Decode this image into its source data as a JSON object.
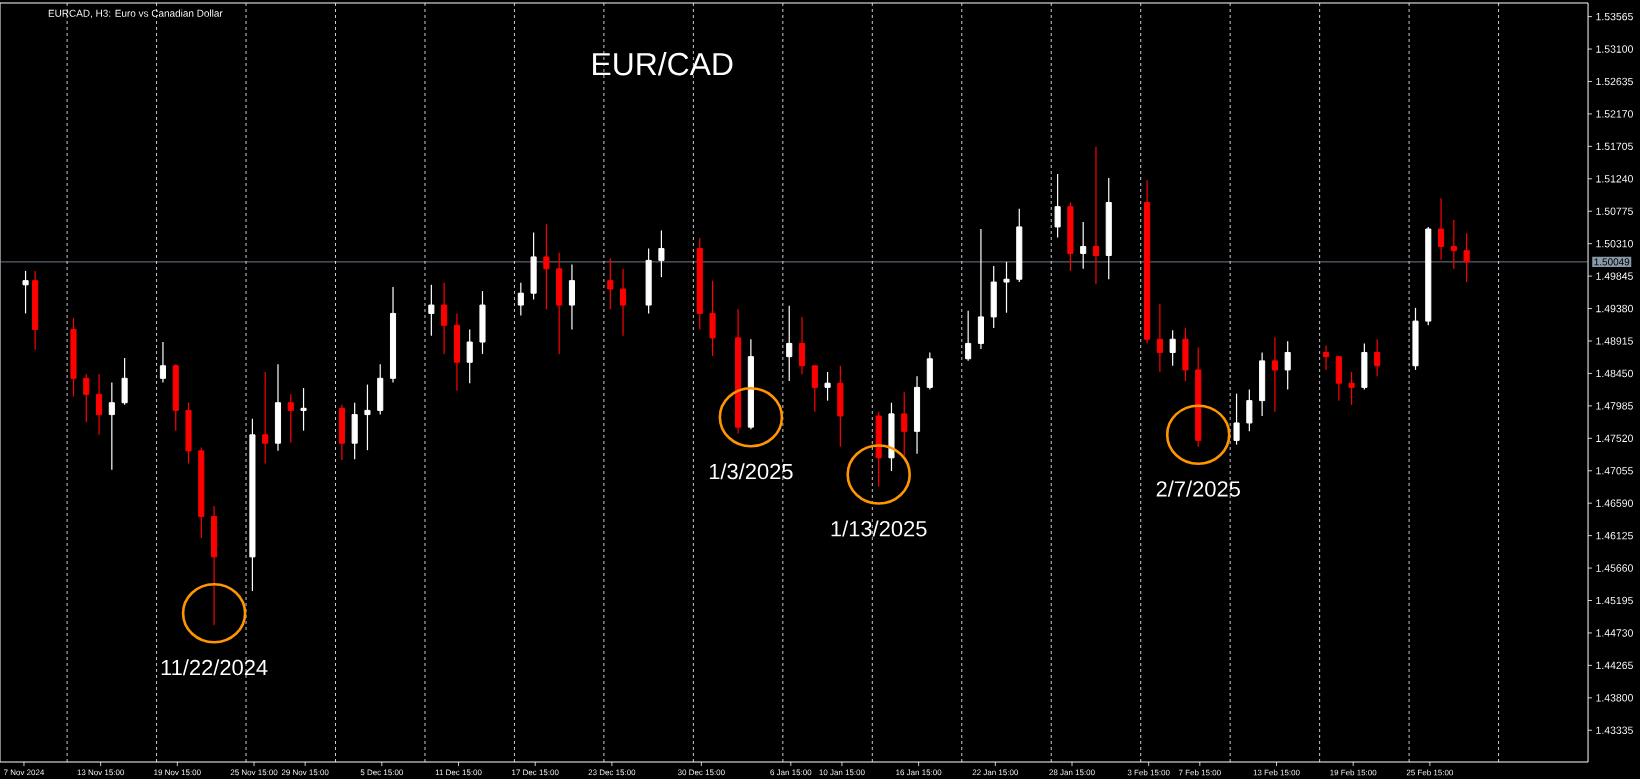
{
  "chart_data": {
    "type": "candlestick",
    "title": "EUR/CAD",
    "subtitle": "EURCAD, H3:  Euro vs Canadian Dollar",
    "x": [
      "2024-11-07T18:00",
      "2024-11-08T12:00",
      "2024-11-11T12:00",
      "2024-11-12T12:00",
      "2024-11-13T12:00",
      "2024-11-14T12:00",
      "2024-11-15T12:00",
      "2024-11-18T12:00",
      "2024-11-19T12:00",
      "2024-11-20T12:00",
      "2024-11-21T12:00",
      "2024-11-22T12:00",
      "2024-11-25T12:00",
      "2024-11-26T12:00",
      "2024-11-27T12:00",
      "2024-11-28T12:00",
      "2024-11-29T12:00",
      "2024-12-02T12:00",
      "2024-12-03T12:00",
      "2024-12-04T12:00",
      "2024-12-05T12:00",
      "2024-12-06T12:00",
      "2024-12-09T12:00",
      "2024-12-10T12:00",
      "2024-12-11T12:00",
      "2024-12-12T12:00",
      "2024-12-13T12:00",
      "2024-12-16T12:00",
      "2024-12-17T12:00",
      "2024-12-18T12:00",
      "2024-12-19T12:00",
      "2024-12-20T12:00",
      "2024-12-23T12:00",
      "2024-12-24T12:00",
      "2024-12-26T12:00",
      "2024-12-27T12:00",
      "2024-12-30T12:00",
      "2024-12-31T12:00",
      "2025-01-02T12:00",
      "2025-01-03T12:00",
      "2025-01-06T12:00",
      "2025-01-07T12:00",
      "2025-01-08T12:00",
      "2025-01-09T12:00",
      "2025-01-10T12:00",
      "2025-01-13T12:00",
      "2025-01-14T12:00",
      "2025-01-15T12:00",
      "2025-01-16T12:00",
      "2025-01-17T12:00",
      "2025-01-20T12:00",
      "2025-01-21T12:00",
      "2025-01-22T12:00",
      "2025-01-23T12:00",
      "2025-01-24T12:00",
      "2025-01-27T12:00",
      "2025-01-28T12:00",
      "2025-01-29T12:00",
      "2025-01-30T12:00",
      "2025-01-31T12:00",
      "2025-02-03T12:00",
      "2025-02-04T12:00",
      "2025-02-05T12:00",
      "2025-02-06T12:00",
      "2025-02-07T12:00",
      "2025-02-10T12:00",
      "2025-02-11T12:00",
      "2025-02-12T12:00",
      "2025-02-13T12:00",
      "2025-02-14T12:00",
      "2025-02-17T12:00",
      "2025-02-18T12:00",
      "2025-02-19T12:00",
      "2025-02-20T12:00",
      "2025-02-21T12:00",
      "2025-02-24T12:00",
      "2025-02-25T12:00",
      "2025-02-26T12:00",
      "2025-02-27T12:00",
      "2025-02-28T12:00"
    ],
    "ohlc": [
      [
        1.4972,
        1.4992,
        1.4931,
        1.4978
      ],
      [
        1.4978,
        1.4992,
        1.4879,
        1.4908
      ],
      [
        1.4908,
        1.4925,
        1.4812,
        1.4838
      ],
      [
        1.4838,
        1.4844,
        1.4775,
        1.4815
      ],
      [
        1.4815,
        1.4844,
        1.4757,
        1.4786
      ],
      [
        1.4786,
        1.4832,
        1.4707,
        1.4803
      ],
      [
        1.4803,
        1.4867,
        1.48,
        1.4838
      ],
      [
        1.4838,
        1.489,
        1.4832,
        1.4856
      ],
      [
        1.4856,
        1.4858,
        1.4763,
        1.4792
      ],
      [
        1.4792,
        1.4803,
        1.4716,
        1.4734
      ],
      [
        1.4734,
        1.4739,
        1.4609,
        1.464
      ],
      [
        1.464,
        1.4655,
        1.4484,
        1.4582
      ],
      [
        1.4582,
        1.478,
        1.4533,
        1.4757
      ],
      [
        1.4757,
        1.4847,
        1.4716,
        1.4745
      ],
      [
        1.4745,
        1.4858,
        1.4734,
        1.4803
      ],
      [
        1.4803,
        1.4815,
        1.4746,
        1.4792
      ],
      [
        1.4792,
        1.4824,
        1.4763,
        1.4795
      ],
      [
        1.4795,
        1.48,
        1.4721,
        1.4745
      ],
      [
        1.4745,
        1.4803,
        1.4722,
        1.4786
      ],
      [
        1.4786,
        1.4829,
        1.4735,
        1.4792
      ],
      [
        1.4792,
        1.4858,
        1.4786,
        1.4838
      ],
      [
        1.4838,
        1.4969,
        1.4832,
        1.4931
      ],
      [
        1.4931,
        1.4972,
        1.4899,
        1.4943
      ],
      [
        1.4943,
        1.4975,
        1.4873,
        1.4914
      ],
      [
        1.4914,
        1.4931,
        1.482,
        1.4861
      ],
      [
        1.4861,
        1.4908,
        1.4831,
        1.489
      ],
      [
        1.489,
        1.4963,
        1.4873,
        1.4943
      ],
      [
        1.4943,
        1.4975,
        1.4928,
        1.496
      ],
      [
        1.496,
        1.5047,
        1.4951,
        1.5012
      ],
      [
        1.5012,
        1.5059,
        1.4937,
        1.4995
      ],
      [
        1.4995,
        1.5018,
        1.4873,
        1.4943
      ],
      [
        1.4943,
        1.5001,
        1.4908,
        1.4978
      ],
      [
        1.4978,
        1.501,
        1.4937,
        1.4966
      ],
      [
        1.4966,
        1.4995,
        1.4899,
        1.4943
      ],
      [
        1.4943,
        1.5024,
        1.4931,
        1.5007
      ],
      [
        1.5007,
        1.505,
        1.4983,
        1.5024
      ],
      [
        1.5024,
        1.5039,
        1.4908,
        1.4931
      ],
      [
        1.4931,
        1.4978,
        1.487,
        1.4896
      ],
      [
        1.4896,
        1.4937,
        1.4759,
        1.4768
      ],
      [
        1.4768,
        1.4894,
        1.4765,
        1.4869
      ],
      [
        1.4869,
        1.4942,
        1.4834,
        1.4888
      ],
      [
        1.4888,
        1.4926,
        1.4844,
        1.4856
      ],
      [
        1.4856,
        1.4856,
        1.479,
        1.4825
      ],
      [
        1.4825,
        1.4847,
        1.4806,
        1.4831
      ],
      [
        1.4831,
        1.4856,
        1.474,
        1.4784
      ],
      [
        1.4784,
        1.479,
        1.4683,
        1.4724
      ],
      [
        1.4724,
        1.4803,
        1.4705,
        1.4787
      ],
      [
        1.4787,
        1.4818,
        1.4727,
        1.4762
      ],
      [
        1.4762,
        1.4841,
        1.473,
        1.4825
      ],
      [
        1.4825,
        1.4875,
        1.4822,
        1.4866
      ],
      [
        1.4866,
        1.4935,
        1.4863,
        1.4888
      ],
      [
        1.4888,
        1.5052,
        1.488,
        1.4926
      ],
      [
        1.4926,
        1.4999,
        1.491,
        1.4976
      ],
      [
        1.4976,
        1.5005,
        1.4932,
        1.498
      ],
      [
        1.498,
        1.5081,
        1.4976,
        1.5055
      ],
      [
        1.5055,
        1.5131,
        1.504,
        1.5084
      ],
      [
        1.5084,
        1.509,
        1.4992,
        1.5017
      ],
      [
        1.5017,
        1.5062,
        1.4995,
        1.5027
      ],
      [
        1.5027,
        1.517,
        1.4973,
        1.5014
      ],
      [
        1.5014,
        1.5125,
        1.498,
        1.509
      ],
      [
        1.509,
        1.5122,
        1.4888,
        1.4894
      ],
      [
        1.4894,
        1.4945,
        1.4847,
        1.4875
      ],
      [
        1.4875,
        1.4907,
        1.4856,
        1.4894
      ],
      [
        1.4894,
        1.491,
        1.4834,
        1.485
      ],
      [
        1.485,
        1.4882,
        1.474,
        1.4749
      ],
      [
        1.4749,
        1.4816,
        1.4743,
        1.4774
      ],
      [
        1.4774,
        1.4822,
        1.4762,
        1.4806
      ],
      [
        1.4806,
        1.4875,
        1.4784,
        1.4863
      ],
      [
        1.4863,
        1.4897,
        1.479,
        1.485
      ],
      [
        1.485,
        1.4891,
        1.4822,
        1.4875
      ],
      [
        1.4875,
        1.4885,
        1.485,
        1.4869
      ],
      [
        1.4869,
        1.4869,
        1.4806,
        1.4831
      ],
      [
        1.4831,
        1.4847,
        1.48,
        1.4825
      ],
      [
        1.4825,
        1.4888,
        1.4822,
        1.4875
      ],
      [
        1.4875,
        1.4894,
        1.4841,
        1.4856
      ],
      [
        1.4856,
        1.4939,
        1.485,
        1.492
      ],
      [
        1.492,
        1.5055,
        1.4914,
        1.5052
      ],
      [
        1.5052,
        1.5096,
        1.5008,
        1.5027
      ],
      [
        1.5027,
        1.5065,
        1.4995,
        1.5021
      ],
      [
        1.5021,
        1.5046,
        1.4976,
        1.5005
      ]
    ],
    "colors": [
      "#ffffff",
      "#ff0000",
      "#ff0000",
      "#ff0000",
      "#ff0000",
      "#ffffff",
      "#ffffff",
      "#ffffff",
      "#ff0000",
      "#ff0000",
      "#ff0000",
      "#ff0000",
      "#ffffff",
      "#ff0000",
      "#ffffff",
      "#ff0000",
      "#ffffff",
      "#ff0000",
      "#ffffff",
      "#ffffff",
      "#ffffff",
      "#ffffff",
      "#ffffff",
      "#ff0000",
      "#ff0000",
      "#ffffff",
      "#ffffff",
      "#ffffff",
      "#ffffff",
      "#ff0000",
      "#ff0000",
      "#ffffff",
      "#ff0000",
      "#ff0000",
      "#ffffff",
      "#ffffff",
      "#ff0000",
      "#ff0000",
      "#ff0000",
      "#ffffff",
      "#ffffff",
      "#ff0000",
      "#ff0000",
      "#ffffff",
      "#ff0000",
      "#ff0000",
      "#ffffff",
      "#ff0000",
      "#ffffff",
      "#ffffff",
      "#ffffff",
      "#ffffff",
      "#ffffff",
      "#ffffff",
      "#ffffff",
      "#ffffff",
      "#ff0000",
      "#ffffff",
      "#ff0000",
      "#ffffff",
      "#ff0000",
      "#ff0000",
      "#ffffff",
      "#ff0000",
      "#ff0000",
      "#ffffff",
      "#ffffff",
      "#ffffff",
      "#ff0000",
      "#ffffff",
      "#ff0000",
      "#ff0000",
      "#ff0000",
      "#ffffff",
      "#ff0000",
      "#ffffff",
      "#ffffff",
      "#ff0000",
      "#ff0000",
      "#ff0000"
    ],
    "xlim": [
      "2024-11-05T18:00",
      "2025-03-10T00:00"
    ],
    "ylim": [
      1.4288,
      1.5376
    ],
    "xticks": [
      {
        "value": "2024-11-07T15:00",
        "label": "7 Nov 2024"
      },
      {
        "value": "2024-11-13T15:00",
        "label": "13 Nov 15:00"
      },
      {
        "value": "2024-11-19T15:00",
        "label": "19 Nov 15:00"
      },
      {
        "value": "2024-11-25T15:00",
        "label": "25 Nov 15:00"
      },
      {
        "value": "2024-11-29T15:00",
        "label": "29 Nov 15:00"
      },
      {
        "value": "2024-12-05T15:00",
        "label": "5 Dec 15:00"
      },
      {
        "value": "2024-12-11T15:00",
        "label": "11 Dec 15:00"
      },
      {
        "value": "2024-12-17T15:00",
        "label": "17 Dec 15:00"
      },
      {
        "value": "2024-12-23T15:00",
        "label": "23 Dec 15:00"
      },
      {
        "value": "2024-12-30T15:00",
        "label": "30 Dec 15:00"
      },
      {
        "value": "2025-01-06T15:00",
        "label": "6 Jan 15:00"
      },
      {
        "value": "2025-01-10T15:00",
        "label": "10 Jan 15:00"
      },
      {
        "value": "2025-01-16T15:00",
        "label": "16 Jan 15:00"
      },
      {
        "value": "2025-01-22T15:00",
        "label": "22 Jan 15:00"
      },
      {
        "value": "2025-01-28T15:00",
        "label": "28 Jan 15:00"
      },
      {
        "value": "2025-02-03T15:00",
        "label": "3 Feb 15:00"
      },
      {
        "value": "2025-02-07T15:00",
        "label": "7 Feb 15:00"
      },
      {
        "value": "2025-02-13T15:00",
        "label": "13 Feb 15:00"
      },
      {
        "value": "2025-02-19T15:00",
        "label": "19 Feb 15:00"
      },
      {
        "value": "2025-02-25T15:00",
        "label": "25 Feb 15:00"
      }
    ],
    "yticks": [
      {
        "value": 1.43335,
        "label": "1.43335"
      },
      {
        "value": 1.438,
        "label": "1.43800"
      },
      {
        "value": 1.44265,
        "label": "1.44265"
      },
      {
        "value": 1.4473,
        "label": "1.44730"
      },
      {
        "value": 1.45195,
        "label": "1.45195"
      },
      {
        "value": 1.4566,
        "label": "1.45660"
      },
      {
        "value": 1.46125,
        "label": "1.46125"
      },
      {
        "value": 1.4659,
        "label": "1.46590"
      },
      {
        "value": 1.47055,
        "label": "1.47055"
      },
      {
        "value": 1.4752,
        "label": "1.47520"
      },
      {
        "value": 1.47985,
        "label": "1.47985"
      },
      {
        "value": 1.4845,
        "label": "1.48450"
      },
      {
        "value": 1.48915,
        "label": "1.48915"
      },
      {
        "value": 1.4938,
        "label": "1.49380"
      },
      {
        "value": 1.49845,
        "label": "1.49845"
      },
      {
        "value": 1.5031,
        "label": "1.50310"
      },
      {
        "value": 1.50775,
        "label": "1.50775"
      },
      {
        "value": 1.5124,
        "label": "1.51240"
      },
      {
        "value": 1.51705,
        "label": "1.51705"
      },
      {
        "value": 1.5217,
        "label": "1.52170"
      },
      {
        "value": 1.52635,
        "label": "1.52635"
      },
      {
        "value": 1.531,
        "label": "1.53100"
      },
      {
        "value": 1.53565,
        "label": "1.53565"
      }
    ],
    "ref_lines": [
      {
        "axis": "y",
        "value": 1.50049,
        "label": "1.50049",
        "color": "#8899aa",
        "line_style": "solid"
      },
      {
        "axis": "x",
        "value": "2024-11-11",
        "color": "#ffffff",
        "line_style": "dashed"
      },
      {
        "axis": "x",
        "value": "2024-11-18",
        "color": "#ffffff",
        "line_style": "dashed"
      },
      {
        "axis": "x",
        "value": "2024-11-25",
        "color": "#ffffff",
        "line_style": "dashed"
      },
      {
        "axis": "x",
        "value": "2024-12-02",
        "color": "#ffffff",
        "line_style": "dashed"
      },
      {
        "axis": "x",
        "value": "2024-12-09",
        "color": "#ffffff",
        "line_style": "dashed"
      },
      {
        "axis": "x",
        "value": "2024-12-16",
        "color": "#ffffff",
        "line_style": "dashed"
      },
      {
        "axis": "x",
        "value": "2024-12-23",
        "color": "#ffffff",
        "line_style": "dashed"
      },
      {
        "axis": "x",
        "value": "2024-12-30",
        "color": "#ffffff",
        "line_style": "dashed"
      },
      {
        "axis": "x",
        "value": "2025-01-06",
        "color": "#ffffff",
        "line_style": "dashed"
      },
      {
        "axis": "x",
        "value": "2025-01-13",
        "color": "#ffffff",
        "line_style": "dashed"
      },
      {
        "axis": "x",
        "value": "2025-01-20",
        "color": "#ffffff",
        "line_style": "dashed"
      },
      {
        "axis": "x",
        "value": "2025-01-27",
        "color": "#ffffff",
        "line_style": "dashed"
      },
      {
        "axis": "x",
        "value": "2025-02-03",
        "color": "#ffffff",
        "line_style": "dashed"
      },
      {
        "axis": "x",
        "value": "2025-02-10",
        "color": "#ffffff",
        "line_style": "dashed"
      },
      {
        "axis": "x",
        "value": "2025-02-17",
        "color": "#ffffff",
        "line_style": "dashed"
      },
      {
        "axis": "x",
        "value": "2025-02-24",
        "color": "#ffffff",
        "line_style": "dashed"
      },
      {
        "axis": "x",
        "value": "2025-03-03",
        "color": "#ffffff",
        "line_style": "dashed"
      }
    ],
    "annotations": [
      {
        "text": "11/22/2024",
        "x": "2024-11-22T12:00",
        "y": 1.4484
      },
      {
        "text": "1/3/2025",
        "x": "2025-01-03T12:00",
        "y": 1.4765
      },
      {
        "text": "1/13/2025",
        "x": "2025-01-13T12:00",
        "y": 1.4683
      },
      {
        "text": "2/7/2025",
        "x": "2025-02-07T12:00",
        "y": 1.474
      }
    ]
  }
}
